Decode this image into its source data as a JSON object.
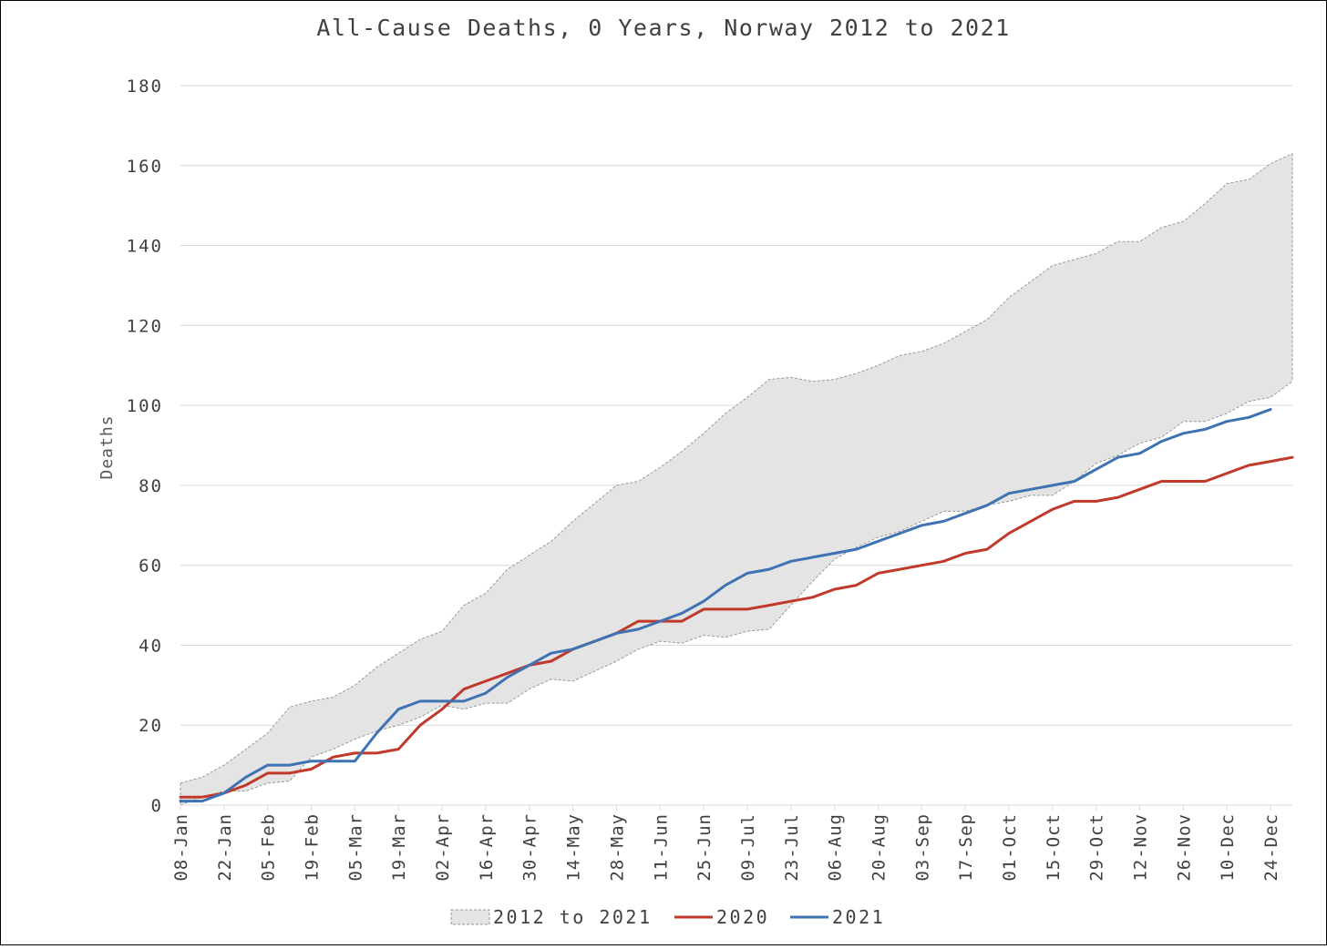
{
  "chart_data": {
    "type": "line",
    "title": "All-Cause Deaths, 0 Years, Norway 2012 to 2021",
    "xlabel": "",
    "ylabel": "Deaths",
    "ylim": [
      0,
      180
    ],
    "yticks": [
      0,
      20,
      40,
      60,
      80,
      100,
      120,
      140,
      160,
      180
    ],
    "grid": true,
    "legend_position": "bottom",
    "x_tick_labels": [
      "08-Jan",
      "22-Jan",
      "05-Feb",
      "19-Feb",
      "05-Mar",
      "19-Mar",
      "02-Apr",
      "16-Apr",
      "30-Apr",
      "14-May",
      "28-May",
      "11-Jun",
      "25-Jun",
      "09-Jul",
      "23-Jul",
      "06-Aug",
      "20-Aug",
      "03-Sep",
      "17-Sep",
      "01-Oct",
      "15-Oct",
      "29-Oct",
      "12-Nov",
      "26-Nov",
      "10-Dec",
      "24-Dec"
    ],
    "weeks": 52,
    "series": [
      {
        "name": "2012 to 2021",
        "kind": "range",
        "color": "#e4e4e4",
        "edge_color": "#999999",
        "upper": [
          5.5,
          7,
          10,
          14,
          18,
          24.5,
          26,
          27,
          30,
          34.5,
          38,
          41.5,
          43.5,
          50,
          53,
          59,
          62.5,
          66,
          71,
          75.5,
          80,
          81,
          84.5,
          88.5,
          93,
          98,
          102,
          106.5,
          107,
          106,
          106.5,
          108,
          110,
          112.5,
          113.5,
          115.5,
          118.5,
          121.5,
          127,
          131,
          135,
          136.5,
          138,
          141,
          141,
          144.5,
          146,
          150.5,
          155.5,
          156.5,
          160.5,
          163
        ],
        "lower": [
          0,
          2,
          3.5,
          3.5,
          5.5,
          6,
          12,
          14,
          16.5,
          18.5,
          20,
          22,
          25,
          24,
          25.5,
          25.5,
          29,
          31.5,
          31,
          33.5,
          36,
          39,
          41,
          40.5,
          42.5,
          42,
          43.5,
          44,
          50,
          56,
          61.5,
          64.5,
          67,
          68.5,
          71,
          73.5,
          73.5,
          75,
          76,
          77.5,
          77.5,
          81,
          85.5,
          87.5,
          90.5,
          92,
          96,
          96,
          98,
          101,
          102,
          106
        ]
      },
      {
        "name": "2020",
        "kind": "line",
        "color": "#c0392b",
        "values": [
          2,
          2,
          3,
          5,
          8,
          8,
          9,
          12,
          13,
          13,
          14,
          20,
          24,
          29,
          31,
          33,
          35,
          36,
          39,
          41,
          43,
          46,
          46,
          46,
          49,
          49,
          49,
          50,
          51,
          52,
          54,
          55,
          58,
          59,
          60,
          61,
          63,
          64,
          68,
          71,
          74,
          76,
          76,
          77,
          79,
          81,
          81,
          81,
          83,
          85,
          86,
          87
        ]
      },
      {
        "name": "2021",
        "kind": "line",
        "color": "#3f72b3",
        "values": [
          1,
          1,
          3,
          7,
          10,
          10,
          11,
          11,
          11,
          18,
          24,
          26,
          26,
          26,
          28,
          32,
          35,
          38,
          39,
          41,
          43,
          44,
          46,
          48,
          51,
          55,
          58,
          59,
          61,
          62,
          63,
          64,
          66,
          68,
          70,
          71,
          73,
          75,
          78,
          79,
          80,
          81,
          84,
          87,
          88,
          91,
          93,
          94,
          96,
          97,
          99
        ]
      }
    ]
  }
}
